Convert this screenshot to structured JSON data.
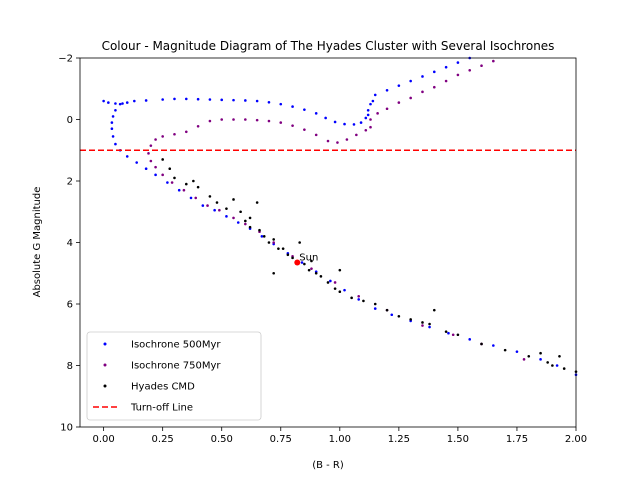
{
  "chart_data": {
    "type": "scatter",
    "title": "Colour - Magnitude Diagram of The Hyades Cluster with Several Isochrones",
    "xlabel": "(B - R)",
    "ylabel": "Absolute G Magnitude",
    "xlim": [
      -0.1,
      2.0
    ],
    "ylim": [
      10,
      -2
    ],
    "y_inverted": true,
    "grid": false,
    "legend_position": "lower-left",
    "xticks": [
      "0.00",
      "0.25",
      "0.50",
      "0.75",
      "1.00",
      "1.25",
      "1.50",
      "1.75",
      "2.00"
    ],
    "yticks": [
      "−2",
      "0",
      "2",
      "4",
      "6",
      "8",
      "10"
    ],
    "annotations": [
      {
        "text": "Sun",
        "x": 0.82,
        "y": 4.65
      }
    ],
    "turnoff_line": {
      "name": "Turn-off Line",
      "y": 1.0,
      "color": "#ff0000",
      "style": "dashed"
    },
    "series": [
      {
        "name": "Isochrone 500Myr",
        "color": "#0000ff",
        "points": [
          [
            0.0,
            -0.6
          ],
          [
            0.02,
            -0.55
          ],
          [
            0.05,
            -0.52
          ],
          [
            0.08,
            -0.52
          ],
          [
            0.1,
            -0.55
          ],
          [
            0.13,
            -0.6
          ],
          [
            0.18,
            -0.62
          ],
          [
            0.25,
            -0.65
          ],
          [
            0.3,
            -0.67
          ],
          [
            0.35,
            -0.67
          ],
          [
            0.4,
            -0.66
          ],
          [
            0.45,
            -0.65
          ],
          [
            0.5,
            -0.64
          ],
          [
            0.55,
            -0.63
          ],
          [
            0.6,
            -0.62
          ],
          [
            0.65,
            -0.6
          ],
          [
            0.7,
            -0.56
          ],
          [
            0.75,
            -0.5
          ],
          [
            0.8,
            -0.42
          ],
          [
            0.85,
            -0.32
          ],
          [
            0.9,
            -0.2
          ],
          [
            0.94,
            -0.05
          ],
          [
            0.98,
            0.08
          ],
          [
            1.02,
            0.15
          ],
          [
            1.06,
            0.16
          ],
          [
            1.09,
            0.1
          ],
          [
            1.11,
            -0.05
          ],
          [
            1.12,
            -0.15
          ],
          [
            0.07,
            -0.5
          ],
          [
            0.05,
            -0.3
          ],
          [
            0.04,
            -0.1
          ],
          [
            0.035,
            0.1
          ],
          [
            0.035,
            0.3
          ],
          [
            0.04,
            0.55
          ],
          [
            0.05,
            0.8
          ],
          [
            0.07,
            1.0
          ],
          [
            0.1,
            1.2
          ],
          [
            0.14,
            1.4
          ],
          [
            0.18,
            1.6
          ],
          [
            0.22,
            1.8
          ],
          [
            0.27,
            2.05
          ],
          [
            0.32,
            2.3
          ],
          [
            0.37,
            2.55
          ],
          [
            0.42,
            2.8
          ],
          [
            0.47,
            2.95
          ],
          [
            0.52,
            3.15
          ],
          [
            0.57,
            3.35
          ],
          [
            0.62,
            3.55
          ],
          [
            0.67,
            3.8
          ],
          [
            0.72,
            4.05
          ],
          [
            0.78,
            4.35
          ],
          [
            0.84,
            4.65
          ],
          [
            0.9,
            4.95
          ],
          [
            0.96,
            5.25
          ],
          [
            1.02,
            5.55
          ],
          [
            1.08,
            5.85
          ],
          [
            1.15,
            6.15
          ],
          [
            1.22,
            6.35
          ],
          [
            1.3,
            6.55
          ],
          [
            1.38,
            6.75
          ],
          [
            1.46,
            6.95
          ],
          [
            1.55,
            7.15
          ],
          [
            1.65,
            7.35
          ],
          [
            1.75,
            7.55
          ],
          [
            1.85,
            7.8
          ],
          [
            1.92,
            8.0
          ],
          [
            2.0,
            8.3
          ],
          [
            1.12,
            -0.3
          ],
          [
            1.13,
            -0.5
          ],
          [
            1.14,
            -0.6
          ],
          [
            1.15,
            -0.8
          ],
          [
            1.2,
            -0.95
          ],
          [
            1.25,
            -1.1
          ],
          [
            1.3,
            -1.25
          ],
          [
            1.35,
            -1.4
          ],
          [
            1.4,
            -1.55
          ],
          [
            1.45,
            -1.7
          ],
          [
            1.5,
            -1.85
          ],
          [
            1.55,
            -2.0
          ]
        ]
      },
      {
        "name": "Isochrone 750Myr",
        "color": "#800080",
        "points": [
          [
            0.2,
            0.85
          ],
          [
            0.22,
            0.65
          ],
          [
            0.25,
            0.55
          ],
          [
            0.3,
            0.48
          ],
          [
            0.35,
            0.4
          ],
          [
            0.4,
            0.22
          ],
          [
            0.45,
            0.05
          ],
          [
            0.5,
            0.0
          ],
          [
            0.55,
            0.0
          ],
          [
            0.6,
            0.0
          ],
          [
            0.65,
            0.02
          ],
          [
            0.7,
            0.05
          ],
          [
            0.75,
            0.1
          ],
          [
            0.8,
            0.2
          ],
          [
            0.85,
            0.33
          ],
          [
            0.9,
            0.5
          ],
          [
            0.95,
            0.7
          ],
          [
            0.99,
            0.75
          ],
          [
            1.03,
            0.65
          ],
          [
            1.07,
            0.5
          ],
          [
            1.11,
            0.35
          ],
          [
            1.13,
            0.25
          ],
          [
            0.19,
            1.1
          ],
          [
            0.2,
            1.35
          ],
          [
            0.22,
            1.55
          ],
          [
            0.25,
            1.8
          ],
          [
            0.29,
            2.05
          ],
          [
            0.34,
            2.3
          ],
          [
            0.39,
            2.55
          ],
          [
            0.44,
            2.8
          ],
          [
            0.49,
            2.95
          ],
          [
            0.55,
            3.2
          ],
          [
            0.6,
            3.4
          ],
          [
            0.66,
            3.65
          ],
          [
            0.72,
            4.0
          ],
          [
            0.8,
            4.45
          ],
          [
            0.88,
            4.85
          ],
          [
            0.98,
            5.3
          ],
          [
            1.08,
            5.75
          ],
          [
            1.2,
            6.2
          ],
          [
            1.35,
            6.7
          ],
          [
            1.48,
            7.0
          ],
          [
            1.6,
            7.3
          ],
          [
            1.78,
            7.8
          ],
          [
            1.13,
            0.0
          ],
          [
            1.16,
            -0.2
          ],
          [
            1.2,
            -0.35
          ],
          [
            1.25,
            -0.55
          ],
          [
            1.3,
            -0.7
          ],
          [
            1.35,
            -0.9
          ],
          [
            1.4,
            -1.05
          ],
          [
            1.45,
            -1.25
          ],
          [
            1.5,
            -1.45
          ],
          [
            1.55,
            -1.6
          ],
          [
            1.6,
            -1.75
          ],
          [
            1.65,
            -1.9
          ]
        ]
      },
      {
        "name": "Hyades CMD",
        "color": "#000000",
        "points": [
          [
            0.25,
            1.3
          ],
          [
            0.28,
            1.6
          ],
          [
            0.3,
            1.9
          ],
          [
            0.35,
            2.1
          ],
          [
            0.38,
            2.0
          ],
          [
            0.4,
            2.2
          ],
          [
            0.45,
            2.5
          ],
          [
            0.48,
            2.7
          ],
          [
            0.52,
            2.9
          ],
          [
            0.55,
            2.6
          ],
          [
            0.58,
            3.0
          ],
          [
            0.6,
            3.3
          ],
          [
            0.62,
            3.5
          ],
          [
            0.65,
            2.7
          ],
          [
            0.66,
            3.6
          ],
          [
            0.68,
            3.8
          ],
          [
            0.7,
            4.0
          ],
          [
            0.72,
            3.9
          ],
          [
            0.74,
            4.2
          ],
          [
            0.78,
            4.4
          ],
          [
            0.8,
            4.5
          ],
          [
            0.83,
            4.0
          ],
          [
            0.85,
            4.7
          ],
          [
            0.87,
            4.9
          ],
          [
            0.9,
            5.0
          ],
          [
            0.92,
            5.1
          ],
          [
            0.95,
            5.3
          ],
          [
            0.98,
            5.5
          ],
          [
            1.0,
            5.6
          ],
          [
            1.05,
            5.8
          ],
          [
            1.1,
            5.9
          ],
          [
            1.15,
            6.0
          ],
          [
            1.2,
            6.2
          ],
          [
            1.25,
            6.4
          ],
          [
            1.3,
            6.5
          ],
          [
            1.35,
            6.6
          ],
          [
            1.38,
            6.65
          ],
          [
            1.4,
            6.2
          ],
          [
            1.45,
            6.9
          ],
          [
            1.5,
            7.0
          ],
          [
            1.6,
            7.3
          ],
          [
            1.7,
            7.5
          ],
          [
            1.8,
            7.7
          ],
          [
            1.85,
            7.6
          ],
          [
            1.88,
            7.9
          ],
          [
            1.9,
            8.0
          ],
          [
            1.93,
            7.7
          ],
          [
            1.95,
            8.1
          ],
          [
            2.0,
            8.2
          ],
          [
            0.72,
            5.0
          ],
          [
            1.0,
            4.9
          ],
          [
            0.88,
            4.6
          ],
          [
            0.76,
            4.2
          ],
          [
            0.62,
            3.2
          ]
        ]
      }
    ]
  }
}
